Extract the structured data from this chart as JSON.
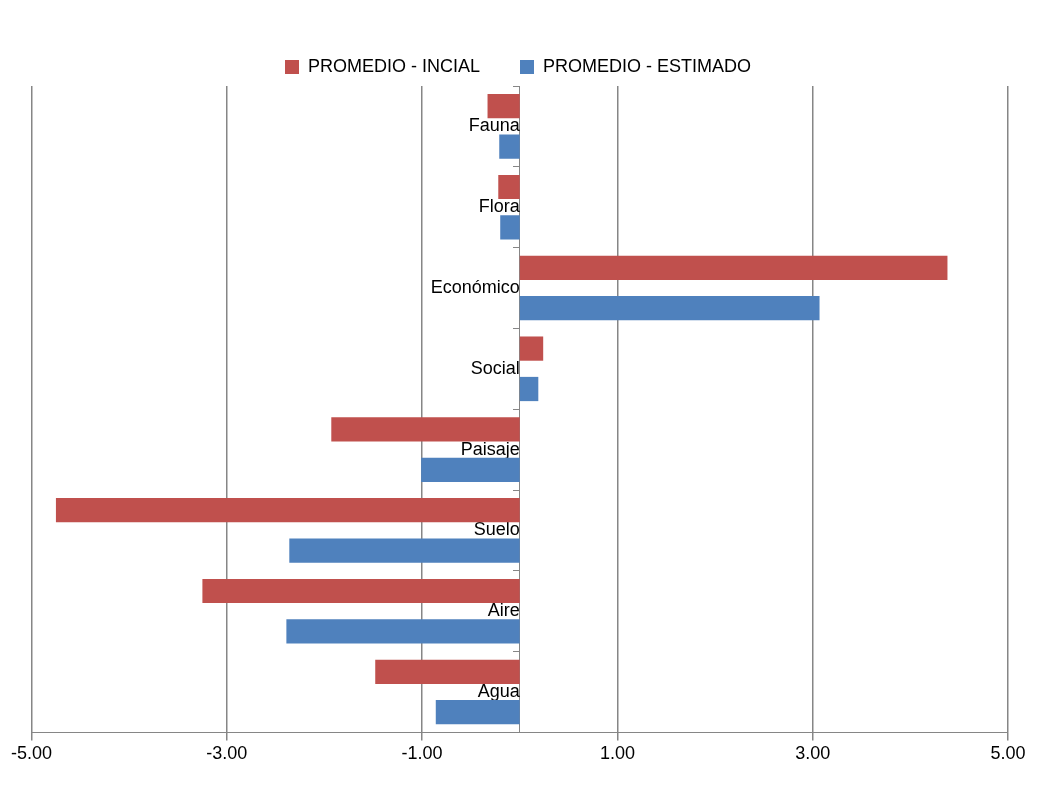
{
  "chart_data": {
    "type": "bar",
    "orientation": "horizontal",
    "categories": [
      "Fauna",
      "Flora",
      "Económico",
      "Social",
      "Paisaje",
      "Suelo",
      "Aire",
      "Agua"
    ],
    "series": [
      {
        "name": "PROMEDIO - INCIAL",
        "color": "#c0504d",
        "values": [
          -0.33,
          -0.22,
          4.38,
          0.24,
          -1.93,
          -4.75,
          -3.25,
          -1.48
        ]
      },
      {
        "name": "PROMEDIO - ESTIMADO",
        "color": "#4f81bd",
        "values": [
          -0.21,
          -0.2,
          3.07,
          0.19,
          -1.01,
          -2.36,
          -2.39,
          -0.86
        ]
      }
    ],
    "xlim": [
      -5,
      5
    ],
    "xticks": [
      {
        "value": -5,
        "label": "-5.00"
      },
      {
        "value": -3,
        "label": "-3.00"
      },
      {
        "value": -1,
        "label": "-1.00"
      },
      {
        "value": 1,
        "label": "1.00"
      },
      {
        "value": 3,
        "label": "3.00"
      },
      {
        "value": 5,
        "label": "5.00"
      }
    ],
    "grid": "x",
    "legend": "top"
  }
}
